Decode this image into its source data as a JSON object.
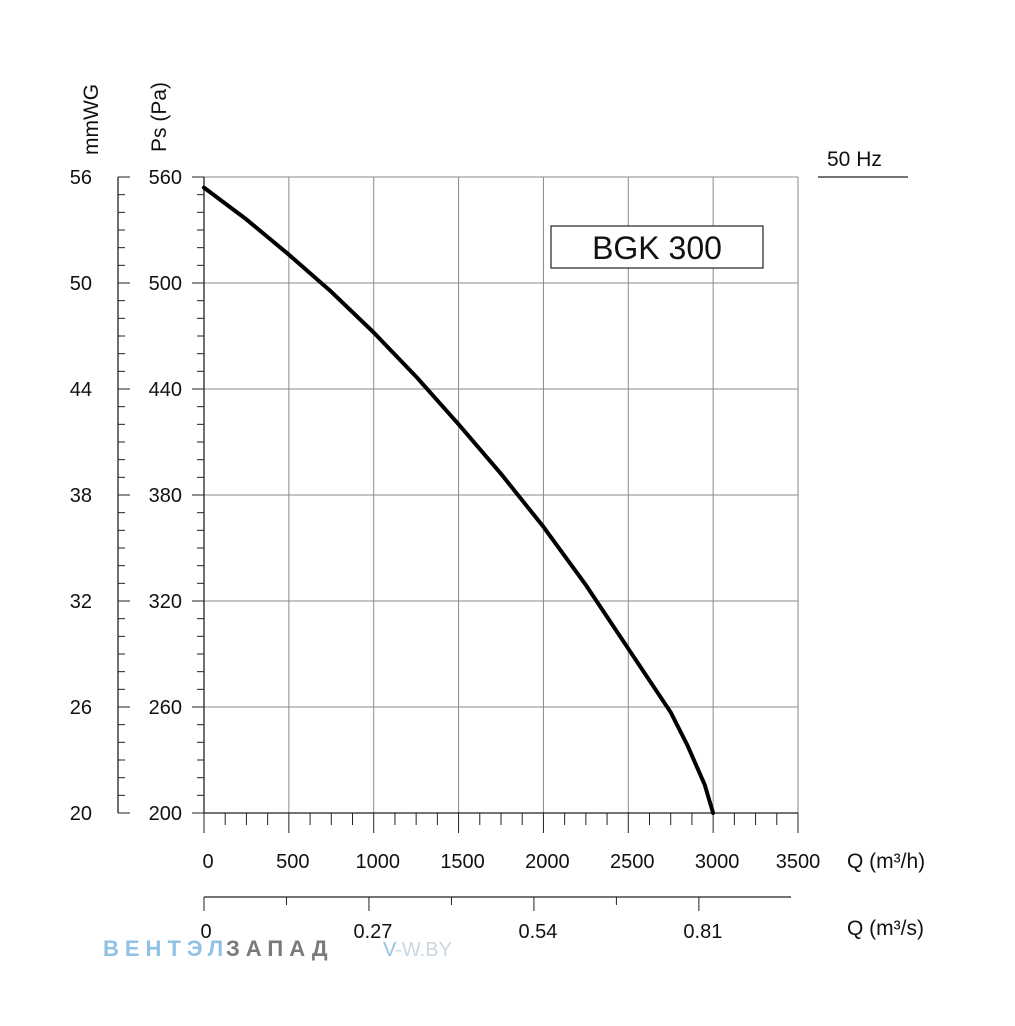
{
  "chart_data": {
    "type": "line",
    "series": [
      {
        "name": "BGK 300",
        "x": [
          0,
          250,
          500,
          750,
          1000,
          1250,
          1500,
          1750,
          2000,
          2250,
          2500,
          2750,
          2850,
          2950,
          3000
        ],
        "y": [
          554,
          536,
          516,
          495,
          472,
          447,
          420,
          392,
          362,
          329,
          293,
          257,
          238,
          216,
          200
        ]
      }
    ],
    "freq_label": "50 Hz",
    "x_primary": {
      "label": "Q (m³/h)",
      "ticks": [
        "0",
        "500",
        "1000",
        "1500",
        "2000",
        "2500",
        "3000",
        "3500"
      ],
      "xlim": [
        0,
        3500
      ]
    },
    "x_secondary": {
      "label": "Q (m³/s)",
      "ticks": [
        "0",
        "0.27",
        "0.54",
        "0.81"
      ],
      "values": [
        0,
        0.27,
        0.54,
        0.81
      ]
    },
    "y_primary": {
      "label": "Ps (Pa)",
      "ticks": [
        "200",
        "260",
        "320",
        "380",
        "440",
        "500",
        "560"
      ],
      "ylim": [
        200,
        560
      ]
    },
    "y_secondary": {
      "label": "mmWG",
      "ticks": [
        "20",
        "26",
        "32",
        "38",
        "44",
        "50",
        "56"
      ]
    },
    "grid": true
  },
  "watermark": {
    "part1": "ВЕНТЭЛ",
    "part2": "ЗАПАД",
    "site_v": "V",
    "site_rest": "-W.BY"
  }
}
